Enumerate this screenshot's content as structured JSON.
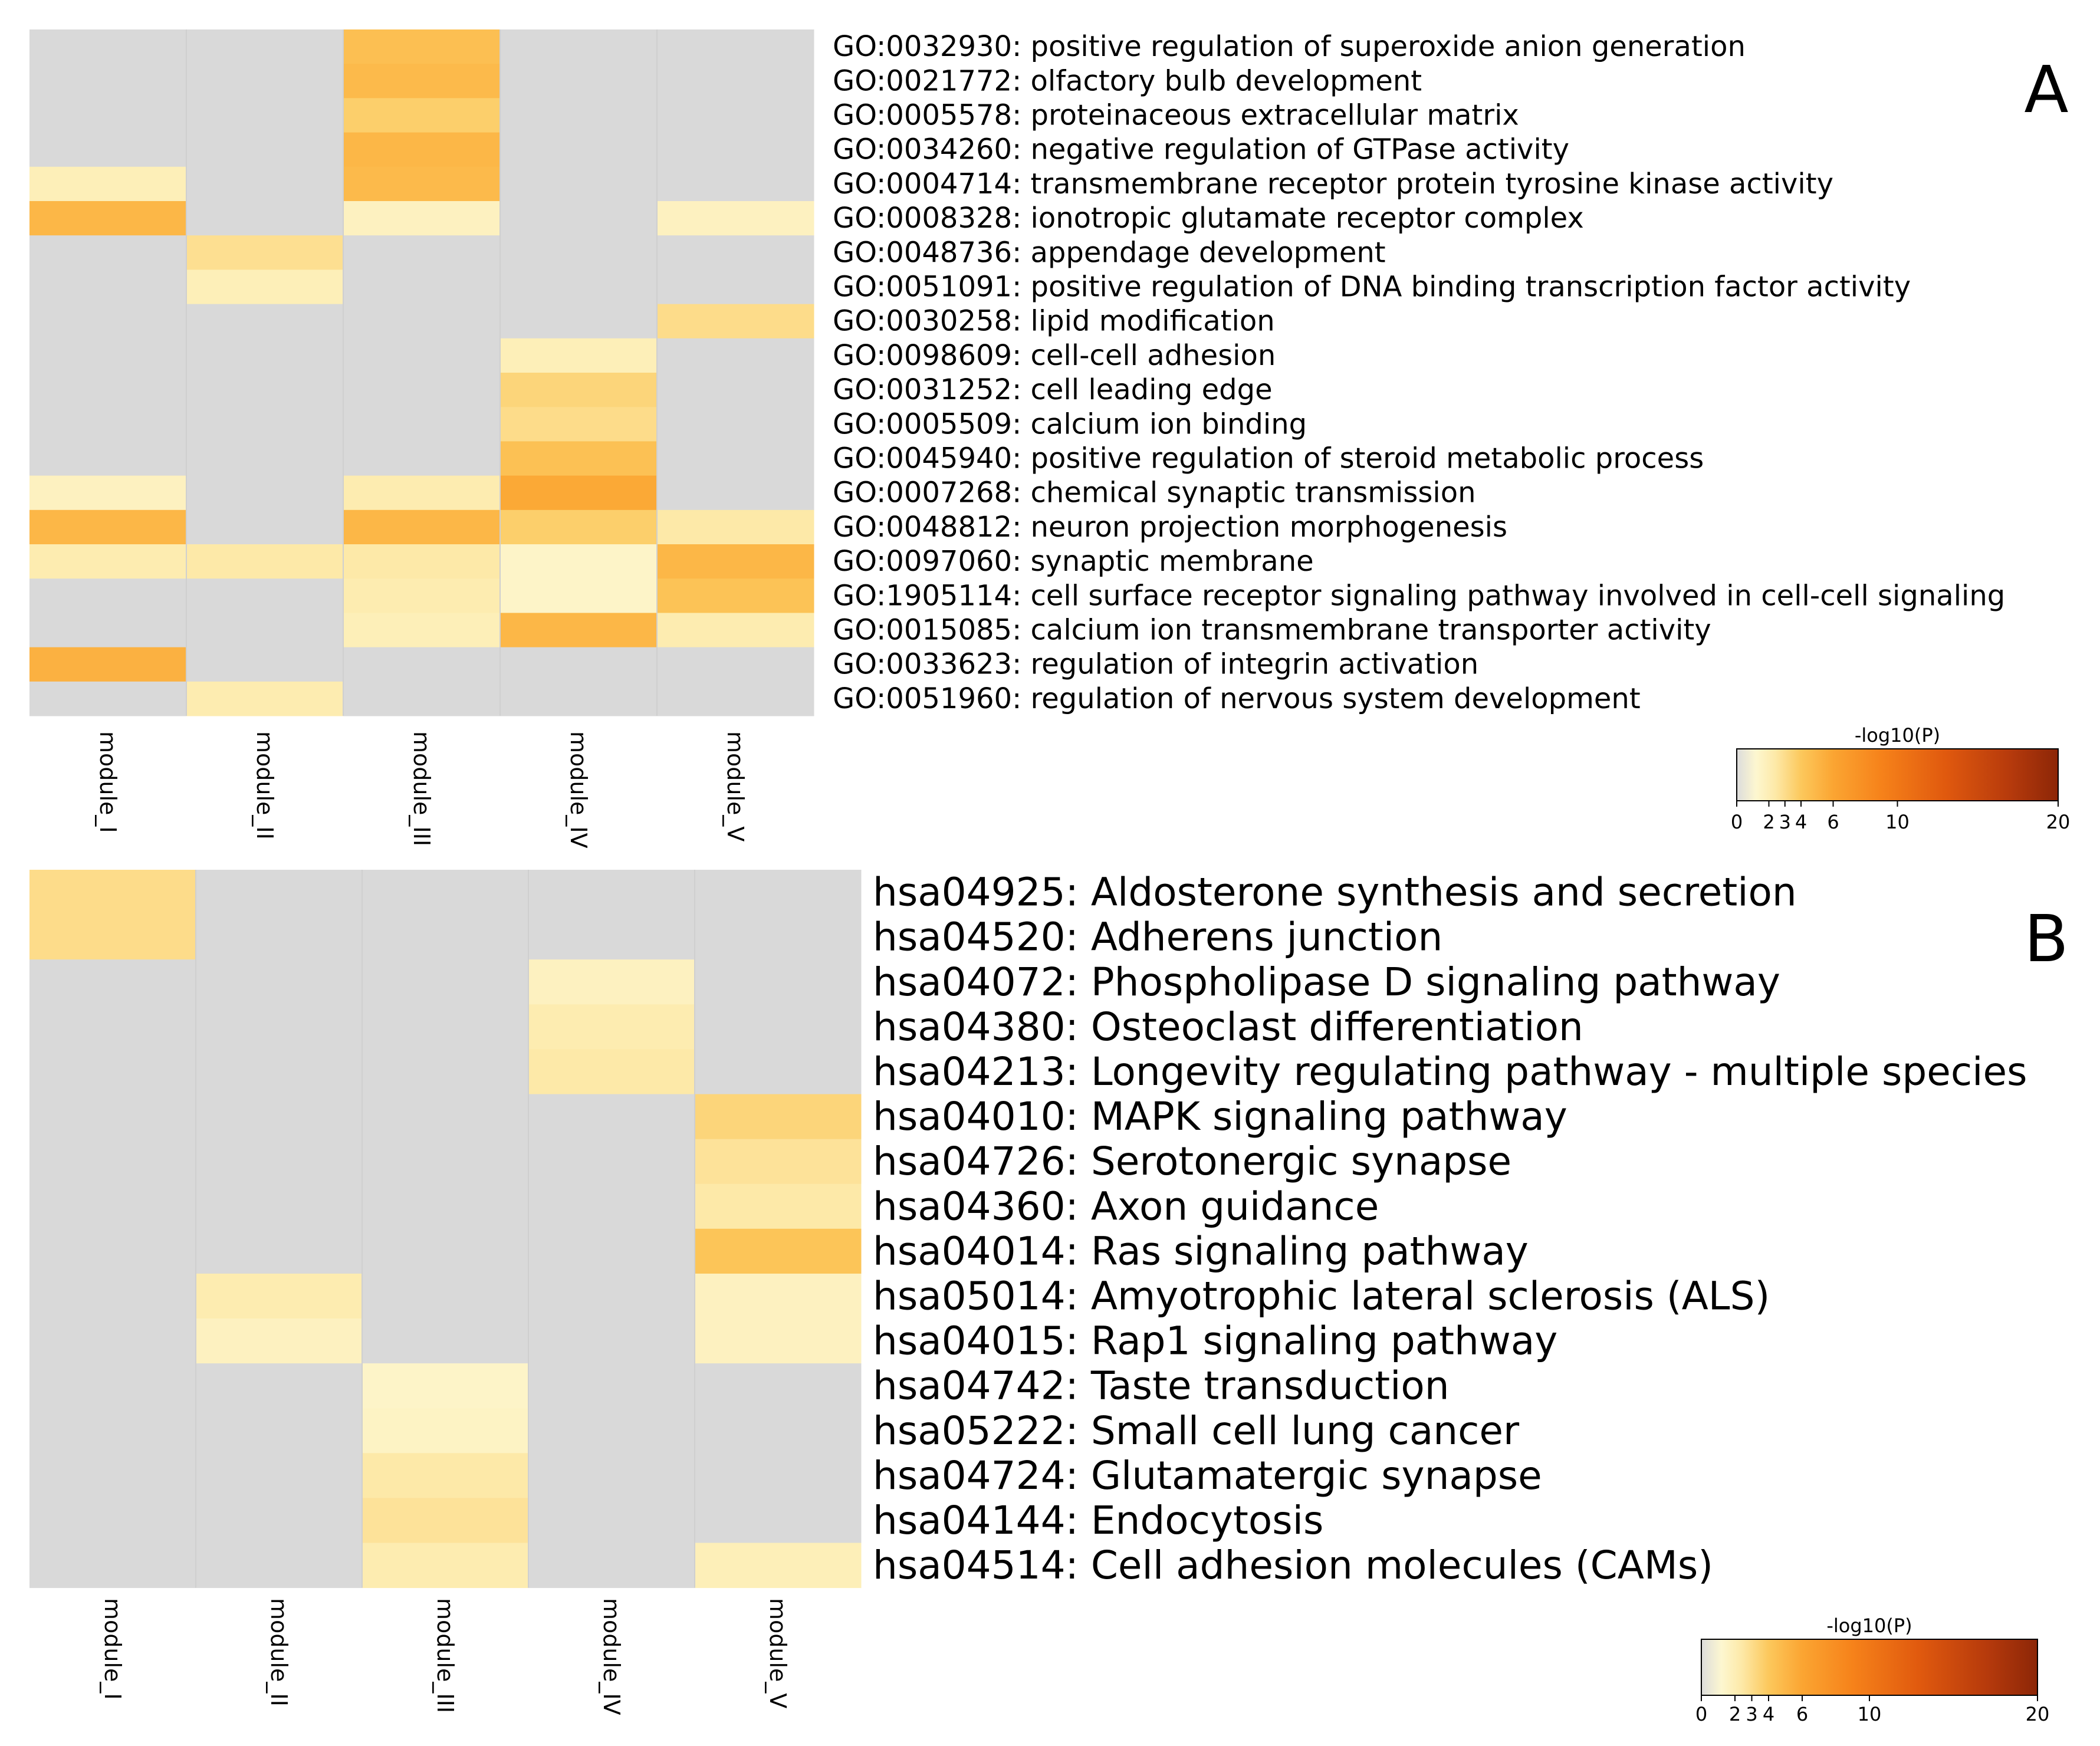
{
  "chart_data": [
    {
      "type": "heatmap",
      "panel_label": "A",
      "columns": [
        "module_I",
        "module_II",
        "module_III",
        "module_IV",
        "module_V"
      ],
      "rows": [
        "GO:0032930: positive regulation of superoxide anion generation",
        "GO:0021772: olfactory bulb development",
        "GO:0005578: proteinaceous extracellular matrix",
        "GO:0034260: negative regulation of GTPase activity",
        "GO:0004714: transmembrane receptor protein tyrosine kinase activity",
        "GO:0008328: ionotropic glutamate receptor complex",
        "GO:0048736: appendage development",
        "GO:0051091: positive regulation of DNA binding transcription factor activity",
        "GO:0030258: lipid modification",
        "GO:0098609: cell-cell adhesion",
        "GO:0031252: cell leading edge",
        "GO:0005509: calcium ion binding",
        "GO:0045940: positive regulation of steroid metabolic process",
        "GO:0007268: chemical synaptic transmission",
        "GO:0048812: neuron projection morphogenesis",
        "GO:0097060: synaptic membrane",
        "GO:1905114: cell surface receptor signaling pathway involved in cell-cell signaling",
        "GO:0015085: calcium ion transmembrane transporter activity",
        "GO:0033623: regulation of integrin activation",
        "GO:0051960: regulation of nervous system development"
      ],
      "values": [
        [
          null,
          null,
          4.5,
          null,
          null
        ],
        [
          null,
          null,
          4.8,
          null,
          null
        ],
        [
          null,
          null,
          3.8,
          null,
          null
        ],
        [
          null,
          null,
          5.0,
          null,
          null
        ],
        [
          2.6,
          null,
          4.8,
          null,
          null
        ],
        [
          5.0,
          null,
          2.4,
          null,
          2.4
        ],
        [
          null,
          3.3,
          null,
          null,
          null
        ],
        [
          null,
          2.6,
          null,
          null,
          null
        ],
        [
          null,
          null,
          null,
          null,
          3.4
        ],
        [
          null,
          null,
          null,
          2.6,
          null
        ],
        [
          null,
          null,
          null,
          3.6,
          null
        ],
        [
          null,
          null,
          null,
          3.4,
          null
        ],
        [
          null,
          null,
          null,
          4.4,
          null
        ],
        [
          2.4,
          null,
          2.8,
          5.8,
          null
        ],
        [
          5.0,
          null,
          5.0,
          3.8,
          3.0
        ],
        [
          2.8,
          3.0,
          3.0,
          2.2,
          5.0
        ],
        [
          null,
          null,
          2.8,
          2.2,
          4.3
        ],
        [
          null,
          null,
          2.6,
          5.0,
          2.8
        ],
        [
          5.3,
          null,
          null,
          null,
          null
        ],
        [
          null,
          2.8,
          null,
          null,
          null
        ]
      ],
      "colorbar": {
        "title": "-log10(P)",
        "ticks": [
          0,
          2,
          3,
          4,
          6,
          10,
          20
        ],
        "range": [
          0,
          20
        ]
      }
    },
    {
      "type": "heatmap",
      "panel_label": "B",
      "columns": [
        "module_I",
        "module_II",
        "module_III",
        "module_IV",
        "module_V"
      ],
      "rows": [
        "hsa04925: Aldosterone synthesis and secretion",
        "hsa04520: Adherens junction",
        "hsa04072: Phospholipase D signaling pathway",
        "hsa04380: Osteoclast differentiation",
        "hsa04213: Longevity regulating pathway - multiple species",
        "hsa04010: MAPK signaling pathway",
        "hsa04726: Serotonergic synapse",
        "hsa04360: Axon guidance",
        "hsa04014: Ras signaling pathway",
        "hsa05014: Amyotrophic lateral sclerosis (ALS)",
        "hsa04015: Rap1 signaling pathway",
        "hsa04742: Taste transduction",
        "hsa05222: Small cell lung cancer",
        "hsa04724: Glutamatergic synapse",
        "hsa04144: Endocytosis",
        "hsa04514: Cell adhesion molecules (CAMs)"
      ],
      "values": [
        [
          3.4,
          null,
          null,
          null,
          null
        ],
        [
          3.4,
          null,
          null,
          null,
          null
        ],
        [
          null,
          null,
          null,
          2.4,
          null
        ],
        [
          null,
          null,
          null,
          2.8,
          null
        ],
        [
          null,
          null,
          null,
          3.0,
          null
        ],
        [
          null,
          null,
          null,
          null,
          3.6
        ],
        [
          null,
          null,
          null,
          null,
          3.2
        ],
        [
          null,
          null,
          null,
          null,
          3.0
        ],
        [
          null,
          null,
          null,
          null,
          4.2
        ],
        [
          null,
          2.8,
          null,
          null,
          2.4
        ],
        [
          null,
          2.4,
          null,
          null,
          2.4
        ],
        [
          null,
          null,
          2.2,
          null,
          null
        ],
        [
          null,
          null,
          2.3,
          null,
          null
        ],
        [
          null,
          null,
          3.0,
          null,
          null
        ],
        [
          null,
          null,
          3.2,
          null,
          null
        ],
        [
          null,
          null,
          2.8,
          null,
          2.6
        ]
      ],
      "colorbar": {
        "title": "-log10(P)",
        "ticks": [
          0,
          2,
          3,
          4,
          6,
          10,
          20
        ],
        "range": [
          0,
          20
        ]
      }
    }
  ]
}
